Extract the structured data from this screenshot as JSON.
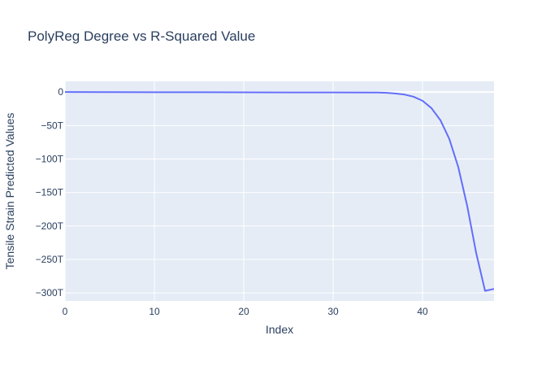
{
  "chart_data": {
    "type": "line",
    "title": "PolyReg Degree vs R-Squared Value",
    "xlabel": "Index",
    "ylabel": "Tensile Strain Predicted Values",
    "xlim": [
      0,
      48
    ],
    "ylim": [
      -312,
      16
    ],
    "x_ticks": [
      0,
      10,
      20,
      30,
      40
    ],
    "x_tick_labels": [
      "0",
      "10",
      "20",
      "30",
      "40"
    ],
    "y_ticks": [
      0,
      -50,
      -100,
      -150,
      -200,
      -250,
      -300
    ],
    "y_tick_labels": [
      "0",
      "−50T",
      "−100T",
      "−150T",
      "−200T",
      "−250T",
      "−300T"
    ],
    "grid": true,
    "legend": "none",
    "colors": {
      "plot_background": "#e5ecf6",
      "grid": "#ffffff",
      "line": "#636efa",
      "text": "#2a3f5f"
    },
    "series": [
      {
        "x": [
          0,
          5,
          10,
          15,
          20,
          25,
          30,
          35,
          36,
          37,
          38,
          39,
          40,
          41,
          42,
          43,
          44,
          45,
          46,
          47,
          48
        ],
        "values": [
          0,
          -0.1,
          -0.2,
          -0.3,
          -0.4,
          -0.5,
          -0.6,
          -0.7,
          -1.2,
          -2.2,
          -3.8,
          -7,
          -13,
          -24,
          -42,
          -70,
          -112,
          -170,
          -240,
          -297,
          -294
        ]
      }
    ]
  }
}
